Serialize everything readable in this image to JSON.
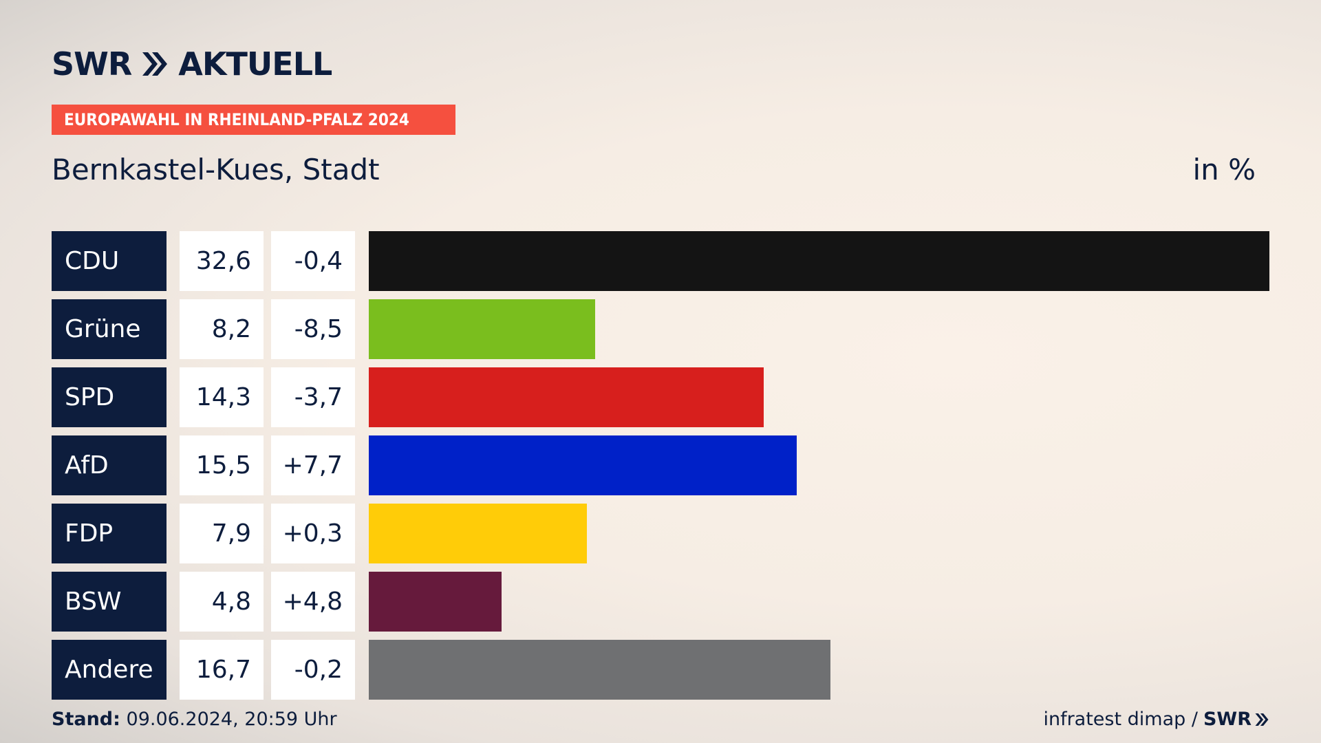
{
  "logo": {
    "brand": "SWR",
    "product": "AKTUELL"
  },
  "badge": "EUROPAWAHL IN RHEINLAND-PFALZ 2024",
  "subtitle": "Bernkastel-Kues, Stadt",
  "unit": "in %",
  "colors": {
    "navy": "#0d1d3d",
    "badge": "#f5503f"
  },
  "chart_data": {
    "type": "bar",
    "orientation": "horizontal",
    "categories": [
      "CDU",
      "Grüne",
      "SPD",
      "AfD",
      "FDP",
      "BSW",
      "Andere"
    ],
    "values": [
      32.6,
      8.2,
      14.3,
      15.5,
      7.9,
      4.8,
      16.7
    ],
    "value_labels": [
      "32,6",
      "8,2",
      "14,3",
      "15,5",
      "7,9",
      "4,8",
      "16,7"
    ],
    "changes": [
      "-0,4",
      "-8,5",
      "-3,7",
      "+7,7",
      "+0,3",
      "+4,8",
      "-0,2"
    ],
    "bar_colors": [
      "#141414",
      "#7abe1e",
      "#d71f1d",
      "#0021c8",
      "#ffcc08",
      "#661a3c",
      "#6f7072"
    ],
    "xlim": [
      0,
      32.6
    ],
    "unit": "in %"
  },
  "footer": {
    "stand_label": "Stand:",
    "stand_value": "09.06.2024, 20:59 Uhr",
    "source": "infratest dimap /",
    "source_brand": "SWR"
  }
}
